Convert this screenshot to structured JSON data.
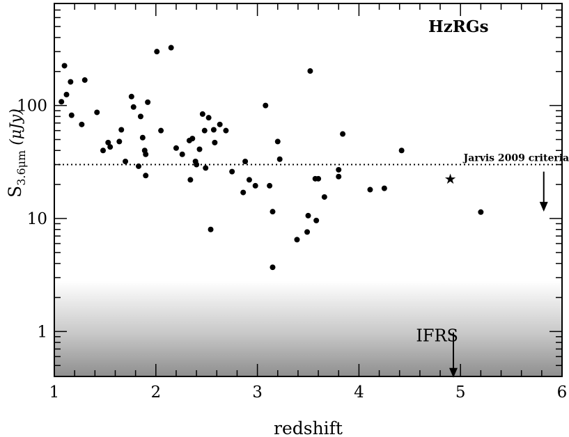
{
  "chart_data": {
    "type": "scatter",
    "title": "",
    "xlabel": "redshift",
    "ylabel": {
      "main": "S",
      "sub": "3.6μm",
      "unit": " (μJy)"
    },
    "xlim": [
      1,
      6
    ],
    "ylim": [
      0.4,
      800
    ],
    "yscale": "log",
    "grid": false,
    "xticks": [
      1,
      2,
      3,
      4,
      5,
      6
    ],
    "xtick_labels": [
      "1",
      "2",
      "3",
      "4",
      "5",
      "6"
    ],
    "yticks": [
      1,
      10,
      100
    ],
    "ytick_labels": [
      "1",
      "10",
      "100"
    ],
    "annotations": {
      "label": "HzRGs",
      "jarvis_line_value": 30,
      "jarvis_label": "Jarvis 2009 criteria",
      "jarvis_arrow": {
        "x": 5.82,
        "y_from": 26,
        "y_to": 11.5
      },
      "ifrs_label": "IFRS",
      "ifrs_arrow": {
        "x": 4.93,
        "y_from": 0.98,
        "y_to": 0.39
      },
      "ifrs_region_upper": 2.8,
      "star_point": {
        "x": 4.9,
        "y": 22.5
      }
    },
    "series": [
      {
        "points": [
          [
            1.07,
            108
          ],
          [
            1.1,
            225
          ],
          [
            1.12,
            125
          ],
          [
            1.16,
            162
          ],
          [
            1.17,
            82
          ],
          [
            1.27,
            68
          ],
          [
            1.3,
            168
          ],
          [
            1.42,
            87
          ],
          [
            1.48,
            40
          ],
          [
            1.53,
            47
          ],
          [
            1.55,
            43
          ],
          [
            1.64,
            48
          ],
          [
            1.66,
            61
          ],
          [
            1.7,
            32
          ],
          [
            1.76,
            120
          ],
          [
            1.78,
            97
          ],
          [
            1.83,
            29
          ],
          [
            1.85,
            80
          ],
          [
            1.87,
            52
          ],
          [
            1.89,
            40
          ],
          [
            1.9,
            24
          ],
          [
            1.9,
            37
          ],
          [
            1.92,
            107
          ],
          [
            2.01,
            300
          ],
          [
            2.05,
            60
          ],
          [
            2.15,
            325
          ],
          [
            2.2,
            42
          ],
          [
            2.26,
            37
          ],
          [
            2.33,
            49
          ],
          [
            2.34,
            22
          ],
          [
            2.36,
            51
          ],
          [
            2.39,
            32
          ],
          [
            2.4,
            30
          ],
          [
            2.43,
            41
          ],
          [
            2.46,
            84
          ],
          [
            2.48,
            60
          ],
          [
            2.49,
            28
          ],
          [
            2.52,
            78
          ],
          [
            2.54,
            8
          ],
          [
            2.57,
            61
          ],
          [
            2.58,
            47
          ],
          [
            2.63,
            68
          ],
          [
            2.69,
            60
          ],
          [
            2.75,
            26
          ],
          [
            2.86,
            17
          ],
          [
            2.88,
            32
          ],
          [
            2.92,
            22
          ],
          [
            2.98,
            19.5
          ],
          [
            3.08,
            100
          ],
          [
            3.12,
            19.5
          ],
          [
            3.15,
            11.5
          ],
          [
            3.15,
            3.7
          ],
          [
            3.2,
            48
          ],
          [
            3.22,
            33.5
          ],
          [
            3.39,
            6.5
          ],
          [
            3.49,
            7.6
          ],
          [
            3.5,
            10.6
          ],
          [
            3.52,
            202
          ],
          [
            3.57,
            22.5
          ],
          [
            3.6,
            22.5
          ],
          [
            3.58,
            9.6
          ],
          [
            3.66,
            15.5
          ],
          [
            3.8,
            27
          ],
          [
            3.8,
            23.5
          ],
          [
            3.84,
            56
          ],
          [
            4.11,
            18
          ],
          [
            4.25,
            18.5
          ],
          [
            4.42,
            40
          ],
          [
            5.2,
            11.4
          ]
        ]
      }
    ]
  }
}
